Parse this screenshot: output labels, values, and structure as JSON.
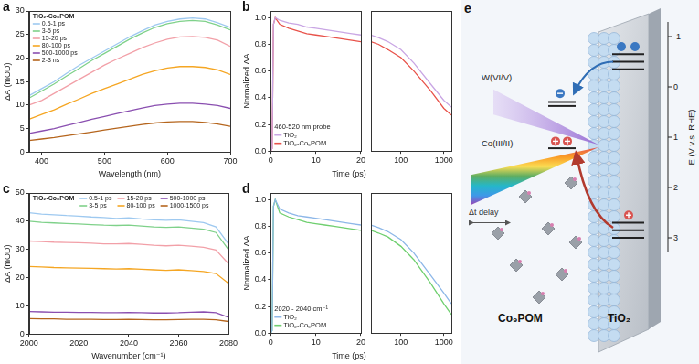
{
  "chart_data": [
    {
      "type": "line",
      "panel": "a",
      "legend_title": "TiO₂-Co₉POM",
      "legend": "upper left",
      "x_label": "Wavelength (nm)",
      "y_label": "ΔA (mOD)",
      "x": [
        380,
        400,
        420,
        440,
        460,
        480,
        500,
        520,
        540,
        560,
        580,
        600,
        620,
        640,
        660,
        680,
        700
      ],
      "xlim": [
        380,
        700
      ],
      "xticks": [
        400,
        500,
        600,
        700
      ],
      "ylim": [
        0,
        30
      ],
      "yticks": [
        0,
        5,
        10,
        15,
        20,
        25,
        30
      ],
      "grid": false,
      "series": [
        {
          "name": "0.5-1 ps",
          "color": "#9ec9f0",
          "values": [
            12,
            13.5,
            15,
            16.8,
            18.5,
            20,
            21.5,
            23,
            24.5,
            25.8,
            27,
            27.8,
            28.3,
            28.5,
            28.3,
            27.5,
            26.5
          ]
        },
        {
          "name": "3-5 ps",
          "color": "#7fd18a",
          "values": [
            11.5,
            13,
            14.5,
            16.2,
            17.8,
            19.5,
            21,
            22.5,
            24,
            25.3,
            26.5,
            27.3,
            27.8,
            28,
            27.8,
            27,
            26
          ]
        },
        {
          "name": "15-20 ps",
          "color": "#f2a0a8",
          "values": [
            10,
            11,
            12.5,
            14,
            15.5,
            17,
            18.5,
            19.8,
            21,
            22.2,
            23.2,
            24,
            24.5,
            24.6,
            24.4,
            23.8,
            22.5
          ]
        },
        {
          "name": "80-100 ps",
          "color": "#f5a623",
          "values": [
            7,
            8,
            9,
            10.2,
            11.3,
            12.5,
            13.5,
            14.5,
            15.5,
            16.5,
            17.3,
            17.9,
            18.2,
            18.2,
            18,
            17.5,
            16.5
          ]
        },
        {
          "name": "500-1000 ps",
          "color": "#8a4fb0",
          "values": [
            4,
            4.5,
            5,
            5.7,
            6.3,
            7,
            7.6,
            8.2,
            8.8,
            9.4,
            9.9,
            10.2,
            10.4,
            10.4,
            10.2,
            9.9,
            9.3
          ]
        },
        {
          "name": "2-3 ns",
          "color": "#b5651d",
          "values": [
            2.5,
            2.8,
            3.1,
            3.5,
            3.9,
            4.3,
            4.7,
            5.1,
            5.5,
            5.9,
            6.2,
            6.4,
            6.5,
            6.5,
            6.3,
            6,
            5.5
          ]
        }
      ]
    },
    {
      "type": "line",
      "panel": "b",
      "legend": "lower left",
      "annotation": "460-520 nm probe",
      "x_label": "Time (ps)",
      "y_label": "Normalized ΔA",
      "x": [
        0,
        0.3,
        0.6,
        1,
        2,
        4,
        6,
        8,
        10,
        12,
        14,
        16,
        18,
        20
      ],
      "xlim": [
        0,
        20
      ],
      "xticks": [
        0,
        10,
        20
      ],
      "ylim": [
        0,
        1.05
      ],
      "yticks": [
        {
          "value": 0,
          "label": "0.0"
        },
        0.2,
        0.4,
        0.6,
        0.8,
        {
          "value": 1,
          "label": "1.0"
        }
      ],
      "grid": false,
      "series": [
        {
          "name": "TiO₂",
          "color": "#c9a6e4",
          "values": [
            0,
            0.02,
            0.95,
            1.0,
            0.98,
            0.96,
            0.95,
            0.93,
            0.92,
            0.91,
            0.9,
            0.89,
            0.88,
            0.87
          ]
        },
        {
          "name": "TiO₂-Co₉POM",
          "color": "#e8524a",
          "values": [
            0,
            0.02,
            0.95,
            1.0,
            0.95,
            0.92,
            0.9,
            0.88,
            0.87,
            0.86,
            0.85,
            0.84,
            0.83,
            0.82
          ]
        }
      ]
    },
    {
      "type": "line",
      "log": "x",
      "tick_labels": "x",
      "x": [
        20,
        30,
        50,
        100,
        200,
        500,
        1000,
        1500
      ],
      "xlim": [
        20,
        1500
      ],
      "xticks": [
        100,
        1000
      ],
      "ylim": [
        0,
        1.05
      ],
      "grid": false,
      "series": [
        {
          "color": "#c9a6e4",
          "values": [
            0.87,
            0.85,
            0.82,
            0.76,
            0.66,
            0.5,
            0.38,
            0.33
          ]
        },
        {
          "color": "#e8524a",
          "values": [
            0.82,
            0.8,
            0.76,
            0.7,
            0.6,
            0.45,
            0.32,
            0.27
          ]
        }
      ]
    },
    {
      "type": "line",
      "panel": "c",
      "legend_title": "TiO₂-Co₉POM",
      "legend": "upper left",
      "x_label": "Wavenumber (cm⁻¹)",
      "y_label": "ΔA (mOD)",
      "x": [
        2000,
        2005,
        2010,
        2015,
        2020,
        2025,
        2030,
        2035,
        2040,
        2045,
        2050,
        2055,
        2060,
        2065,
        2070,
        2075,
        2080
      ],
      "xlim": [
        2000,
        2080
      ],
      "xticks": [
        2000,
        2020,
        2040,
        2060,
        2080
      ],
      "ylim": [
        0,
        50
      ],
      "yticks": [
        0,
        10,
        20,
        30,
        40,
        50
      ],
      "grid": false,
      "series": [
        {
          "name": "0.5-1 ps",
          "color": "#9ec9f0",
          "values": [
            43,
            42.5,
            42.3,
            42,
            41.8,
            41.5,
            41.3,
            41,
            41.2,
            40.8,
            40.5,
            40.3,
            40.5,
            40,
            39.5,
            38,
            32
          ]
        },
        {
          "name": "3-5 ps",
          "color": "#7fd18a",
          "values": [
            40,
            39.6,
            39.4,
            39.2,
            39,
            38.8,
            38.6,
            38.5,
            38.6,
            38.3,
            38,
            37.8,
            38,
            37.6,
            37.2,
            36,
            30
          ]
        },
        {
          "name": "15-20 ps",
          "color": "#f2a0a8",
          "values": [
            33,
            32.8,
            32.6,
            32.5,
            32.4,
            32.2,
            32,
            32,
            32.1,
            31.8,
            31.5,
            31.3,
            31.5,
            31.2,
            30.8,
            29.8,
            25
          ]
        },
        {
          "name": "80-100 ps",
          "color": "#f5a623",
          "values": [
            24,
            23.8,
            23.6,
            23.5,
            23.4,
            23.3,
            23.2,
            23.1,
            23.2,
            23,
            22.8,
            22.6,
            22.8,
            22.5,
            22.2,
            21.5,
            18
          ]
        },
        {
          "name": "500-1000 ps",
          "color": "#8a4fb0",
          "values": [
            8,
            7.9,
            7.8,
            7.8,
            7.7,
            7.7,
            7.6,
            7.6,
            7.7,
            7.6,
            7.5,
            7.5,
            7.6,
            7.8,
            7.9,
            7.6,
            6
          ]
        },
        {
          "name": "1000-1500 ps",
          "color": "#b5651d",
          "values": [
            5.5,
            5.4,
            5.4,
            5.3,
            5.3,
            5.3,
            5.2,
            5.2,
            5.3,
            5.2,
            5.1,
            5.1,
            5.2,
            5.3,
            5.3,
            5.1,
            4.5
          ]
        }
      ]
    },
    {
      "type": "line",
      "panel": "d",
      "legend": "lower left",
      "annotation": "2020 - 2040 cm⁻¹",
      "x_label": "Time (ps)",
      "y_label": "Normalized ΔA",
      "x": [
        0,
        0.3,
        0.6,
        1,
        2,
        4,
        6,
        8,
        10,
        12,
        14,
        16,
        18,
        20
      ],
      "xlim": [
        0,
        20
      ],
      "xticks": [
        0,
        10,
        20
      ],
      "ylim": [
        0,
        1.05
      ],
      "yticks": [
        {
          "value": 0,
          "label": "0.0"
        },
        0.2,
        0.4,
        0.6,
        0.8,
        {
          "value": 1,
          "label": "1.0"
        }
      ],
      "grid": false,
      "series": [
        {
          "name": "TiO₂",
          "color": "#8db7e8",
          "values": [
            0,
            0.02,
            0.95,
            1.0,
            0.93,
            0.9,
            0.88,
            0.87,
            0.86,
            0.85,
            0.84,
            0.83,
            0.82,
            0.81
          ]
        },
        {
          "name": "TiO₂-Co₉POM",
          "color": "#6fcf6f",
          "values": [
            0,
            0.02,
            0.95,
            1.0,
            0.9,
            0.87,
            0.85,
            0.83,
            0.82,
            0.81,
            0.8,
            0.79,
            0.78,
            0.77
          ]
        }
      ]
    },
    {
      "type": "line",
      "log": "x",
      "tick_labels": "x",
      "x": [
        20,
        30,
        50,
        100,
        200,
        500,
        1000,
        1500
      ],
      "xlim": [
        20,
        1500
      ],
      "xticks": [
        100,
        1000
      ],
      "ylim": [
        0,
        1.05
      ],
      "grid": false,
      "series": [
        {
          "color": "#8db7e8",
          "values": [
            0.81,
            0.79,
            0.76,
            0.7,
            0.6,
            0.43,
            0.3,
            0.22
          ]
        },
        {
          "color": "#6fcf6f",
          "values": [
            0.77,
            0.75,
            0.72,
            0.65,
            0.55,
            0.37,
            0.22,
            0.14
          ]
        }
      ]
    }
  ],
  "diagram": {
    "panel": "e",
    "labels": {
      "acceptor": "W(VI/V)",
      "donor": "Co(III/II)",
      "delay": "Δt delay",
      "molecule": "Co₉POM",
      "substrate": "TiO₂"
    },
    "axis": {
      "title": "E (V v.s. RHE)",
      "ticks": [
        -1,
        0,
        1,
        2,
        3
      ]
    }
  }
}
